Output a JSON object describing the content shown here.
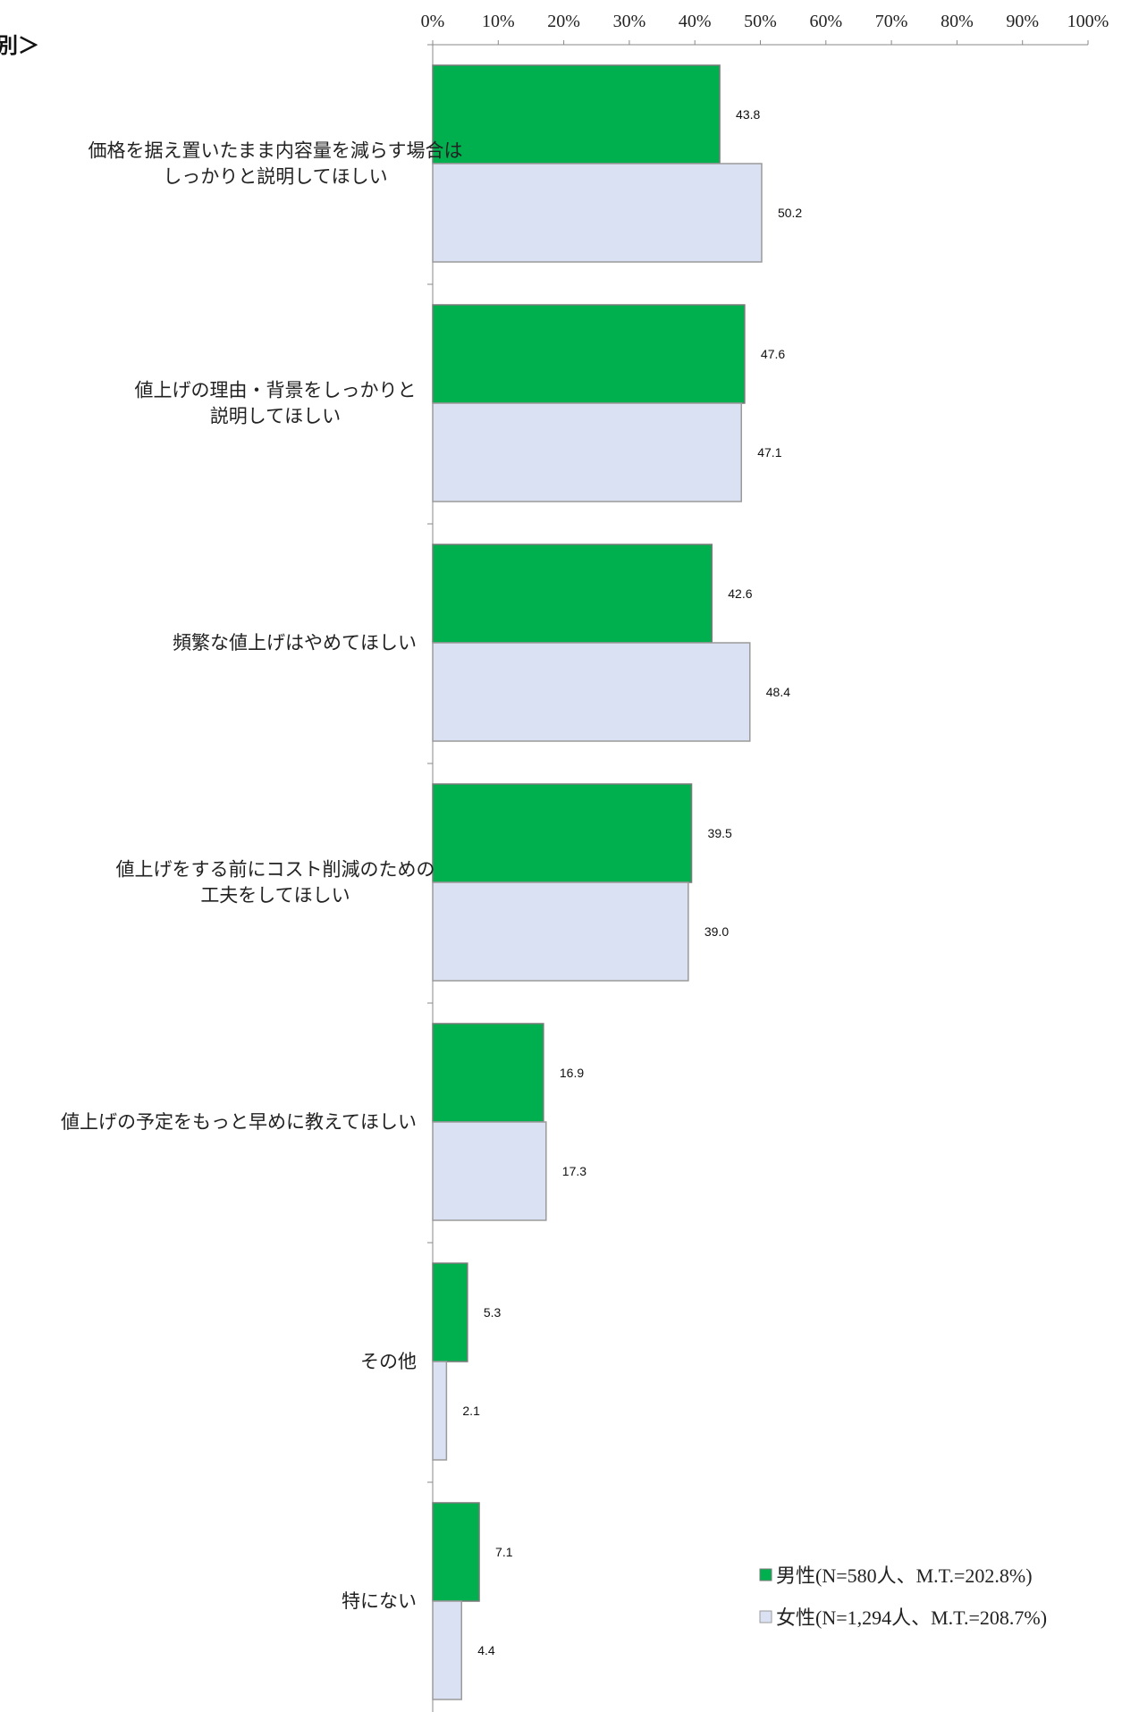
{
  "title_fragment": "別＞",
  "colors": {
    "male": "#00b04f",
    "female": "#d9e1f2",
    "male_stroke": "#7a7a7a",
    "female_stroke": "#9a9a9a"
  },
  "chart_data": {
    "type": "bar",
    "orientation": "horizontal",
    "xlim": [
      0,
      100
    ],
    "x_ticks": [
      "0%",
      "10%",
      "20%",
      "30%",
      "40%",
      "50%",
      "60%",
      "70%",
      "80%",
      "90%",
      "100%"
    ],
    "categories": [
      [
        "価格を据え置いたまま内容量を減らす場合は",
        "しっかりと説明してほしい"
      ],
      [
        "値上げの理由・背景をしっかりと",
        "説明してほしい"
      ],
      [
        "頻繁な値上げはやめてほしい"
      ],
      [
        "値上げをする前にコスト削減のための",
        "工夫をしてほしい"
      ],
      [
        "値上げの予定をもっと早めに教えてほしい"
      ],
      [
        "その他"
      ],
      [
        "特にない"
      ]
    ],
    "series": [
      {
        "name": "男性(N=580人、M.T.=202.8%)",
        "color": "#00b04f",
        "values": [
          43.8,
          47.6,
          42.6,
          39.5,
          16.9,
          5.3,
          7.1
        ],
        "labels": [
          "43.8",
          "47.6",
          "42.6",
          "39.5",
          "16.9",
          "5.3",
          "7.1"
        ]
      },
      {
        "name": "女性(N=1,294人、M.T.=208.7%)",
        "color": "#d9e1f2",
        "values": [
          50.2,
          47.1,
          48.4,
          39.0,
          17.3,
          2.1,
          4.4
        ],
        "labels": [
          "50.2",
          "47.1",
          "48.4",
          "39.0",
          "17.3",
          "2.1",
          "4.4"
        ]
      }
    ],
    "legend_position": "bottom-right",
    "grid": false
  }
}
